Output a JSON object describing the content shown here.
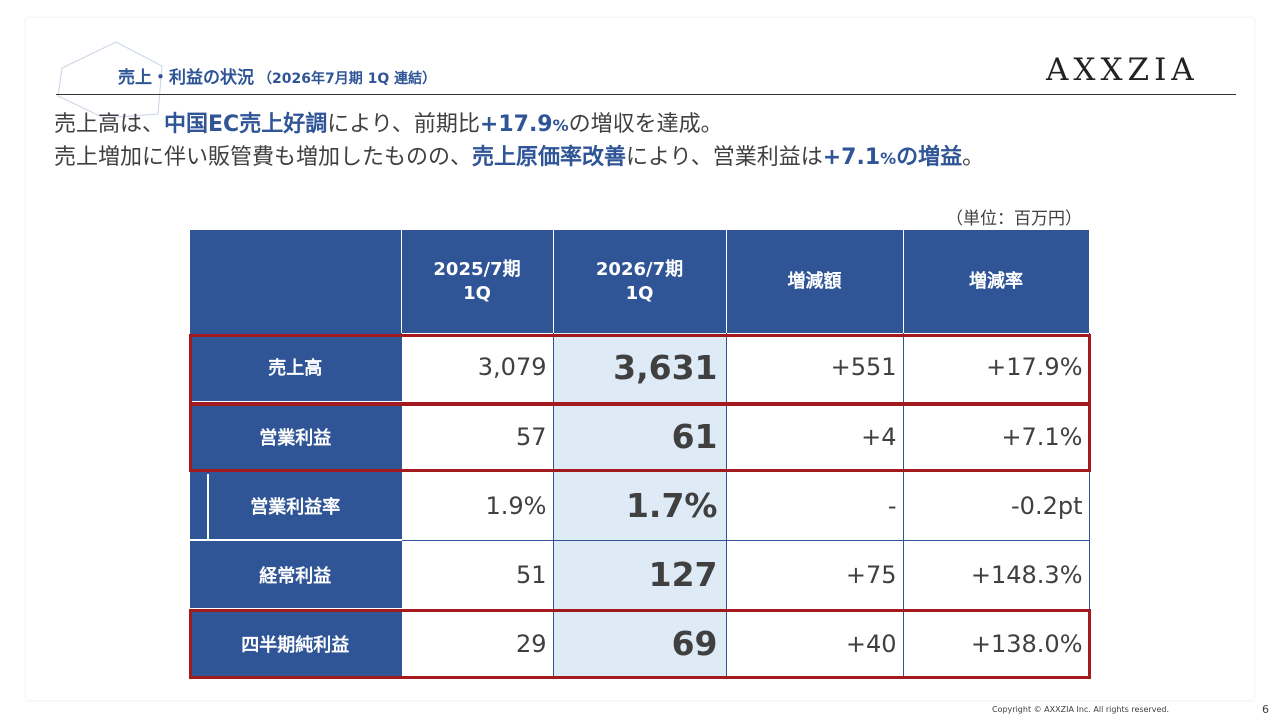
{
  "header": {
    "title": "売上・利益の状況",
    "subtitle": "（2026年7月期 1Q 連結）",
    "logo": "AXXZIA"
  },
  "headline": {
    "line1": [
      "売上高は、",
      "中国EC売上好調",
      "により、前期比",
      "+17.9",
      "%",
      "の増収を達成。"
    ],
    "line2": [
      "売上増加に伴い販管費も増加したものの、",
      "売上原価率改善",
      "により、営業利益は",
      "+7.1",
      "%",
      "の増益",
      "。"
    ]
  },
  "unit_note": "（単位：百万円）",
  "table": {
    "columns": [
      "",
      "2025/7期\n1Q",
      "2026/7期\n1Q",
      "増減額",
      "増減率"
    ],
    "rows": [
      {
        "label": "売上高",
        "prev": "3,079",
        "cur": "3,631",
        "diff": "+551",
        "rate": "+17.9%"
      },
      {
        "label": "営業利益",
        "prev": "57",
        "cur": "61",
        "diff": "+4",
        "rate": "+7.1%"
      },
      {
        "label": "営業利益率",
        "prev": "1.9%",
        "cur": "1.7%",
        "diff": "-",
        "rate": "-0.2pt"
      },
      {
        "label": "経常利益",
        "prev": "51",
        "cur": "127",
        "diff": "+75",
        "rate": "+148.3%"
      },
      {
        "label": "四半期純利益",
        "prev": "29",
        "cur": "69",
        "diff": "+40",
        "rate": "+138.0%"
      }
    ]
  },
  "footer": {
    "copyright": "Copyright © AXXZIA Inc. All rights reserved.",
    "page": "6"
  },
  "colors": {
    "primary": "#2F5597",
    "highlight": "#A31A1E",
    "current_col": "#DEEBF7"
  }
}
